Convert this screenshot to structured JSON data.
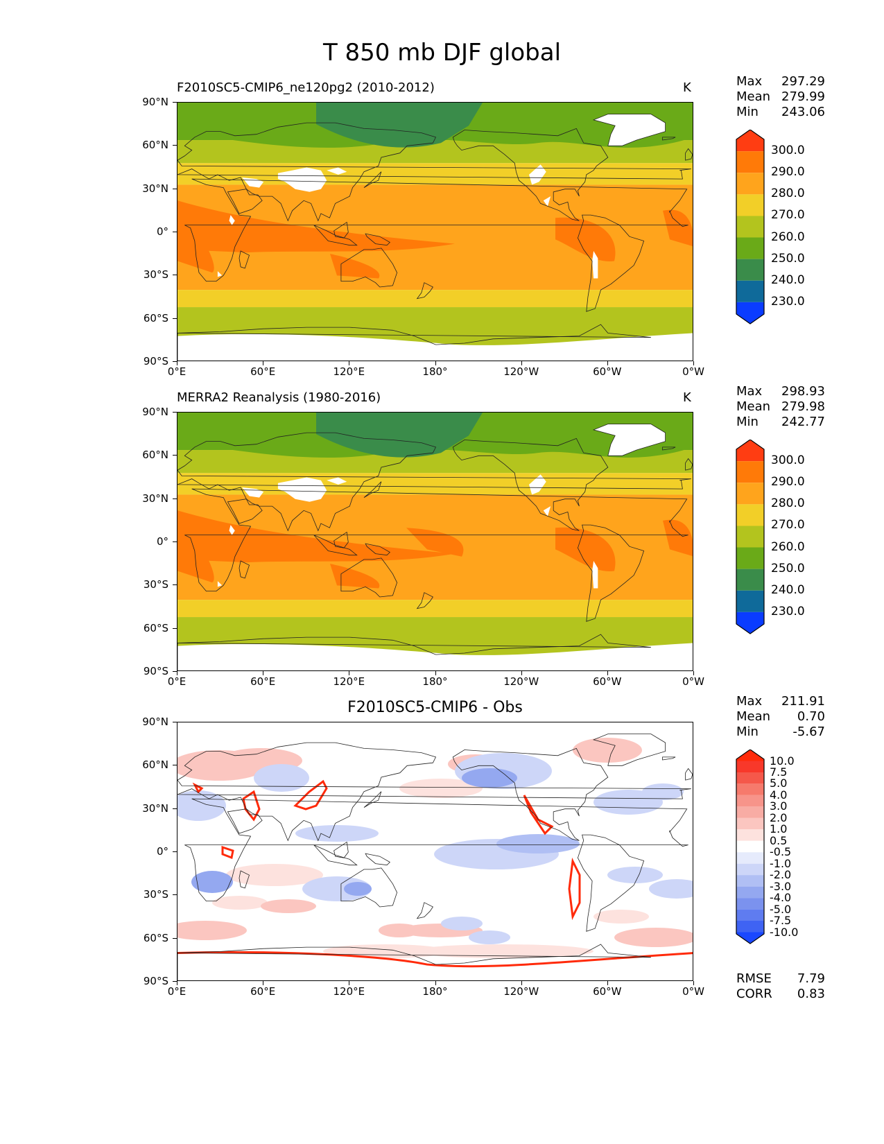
{
  "title": "T 850 mb DJF global",
  "axes": {
    "y_ticks": [
      "90°N",
      "60°N",
      "30°N",
      "0°",
      "30°S",
      "60°S",
      "90°S"
    ],
    "x_ticks": [
      "0°E",
      "60°E",
      "120°E",
      "180°",
      "120°W",
      "60°W",
      "0°W"
    ]
  },
  "panels": [
    {
      "title": "F2010SC5-CMIP6_ne120pg2 (2010-2012)",
      "units": "K",
      "stats": {
        "max_label": "Max",
        "max": "297.29",
        "mean_label": "Mean",
        "mean": "279.99",
        "min_label": "Min",
        "min": "243.06"
      },
      "colorbar": {
        "labels": [
          "300.0",
          "290.0",
          "280.0",
          "270.0",
          "260.0",
          "250.0",
          "240.0",
          "230.0"
        ],
        "colors": [
          "#ff3d12",
          "#ff7a08",
          "#ffa41c",
          "#f2cf28",
          "#b3c41e",
          "#6aaa18",
          "#3a8c4a",
          "#0f6a9a",
          "#0a3cff"
        ]
      }
    },
    {
      "title": "MERRA2 Reanalysis (1980-2016)",
      "units": "K",
      "stats": {
        "max_label": "Max",
        "max": "298.93",
        "mean_label": "Mean",
        "mean": "279.98",
        "min_label": "Min",
        "min": "242.77"
      },
      "colorbar": {
        "labels": [
          "300.0",
          "290.0",
          "280.0",
          "270.0",
          "260.0",
          "250.0",
          "240.0",
          "230.0"
        ],
        "colors": [
          "#ff3d12",
          "#ff7a08",
          "#ffa41c",
          "#f2cf28",
          "#b3c41e",
          "#6aaa18",
          "#3a8c4a",
          "#0f6a9a",
          "#0a3cff"
        ]
      }
    },
    {
      "title": "F2010SC5-CMIP6 - Obs",
      "units": "",
      "stats": {
        "max_label": "Max",
        "max": "211.91",
        "mean_label": "Mean",
        "mean": "0.70",
        "min_label": "Min",
        "min": "-5.67"
      },
      "colorbar": {
        "labels": [
          "10.0",
          "7.5",
          "5.0",
          "4.0",
          "3.0",
          "2.0",
          "1.0",
          "0.5",
          "-0.5",
          "-1.0",
          "-2.0",
          "-3.0",
          "-4.0",
          "-5.0",
          "-7.5",
          "-10.0"
        ],
        "colors": [
          "#ff2a0a",
          "#f8382a",
          "#f5584a",
          "#f67a6c",
          "#f7948a",
          "#f8aca4",
          "#fbc6c0",
          "#fde2de",
          "#ffffff",
          "#e6ebfc",
          "#cdd6f8",
          "#b0bff4",
          "#94a8f0",
          "#7b92ee",
          "#5f7cf0",
          "#3f63f3",
          "#1a48ff"
        ]
      },
      "metrics": {
        "rmse_label": "RMSE",
        "rmse": "7.79",
        "corr_label": "CORR",
        "corr": "0.83"
      }
    }
  ],
  "chart_data": {
    "type": "heatmap",
    "title": "T 850 mb DJF global",
    "variable": "Temperature at 850 mb, DJF",
    "units": "K",
    "lat_range": [
      -90,
      90
    ],
    "lon_range": [
      0,
      360
    ],
    "panels": [
      {
        "name": "F2010SC5-CMIP6_ne120pg2 (2010-2012)",
        "max": 297.29,
        "mean": 279.99,
        "min": 243.06,
        "levels": [
          230,
          240,
          250,
          260,
          270,
          280,
          290,
          300
        ]
      },
      {
        "name": "MERRA2 Reanalysis (1980-2016)",
        "max": 298.93,
        "mean": 279.98,
        "min": 242.77,
        "levels": [
          230,
          240,
          250,
          260,
          270,
          280,
          290,
          300
        ]
      },
      {
        "name": "F2010SC5-CMIP6 - Obs",
        "max": 211.91,
        "mean": 0.7,
        "min": -5.67,
        "rmse": 7.79,
        "corr": 0.83,
        "levels": [
          -10,
          -7.5,
          -5,
          -4,
          -3,
          -2,
          -1,
          -0.5,
          0.5,
          1,
          2,
          3,
          4,
          5,
          7.5,
          10
        ]
      }
    ]
  }
}
